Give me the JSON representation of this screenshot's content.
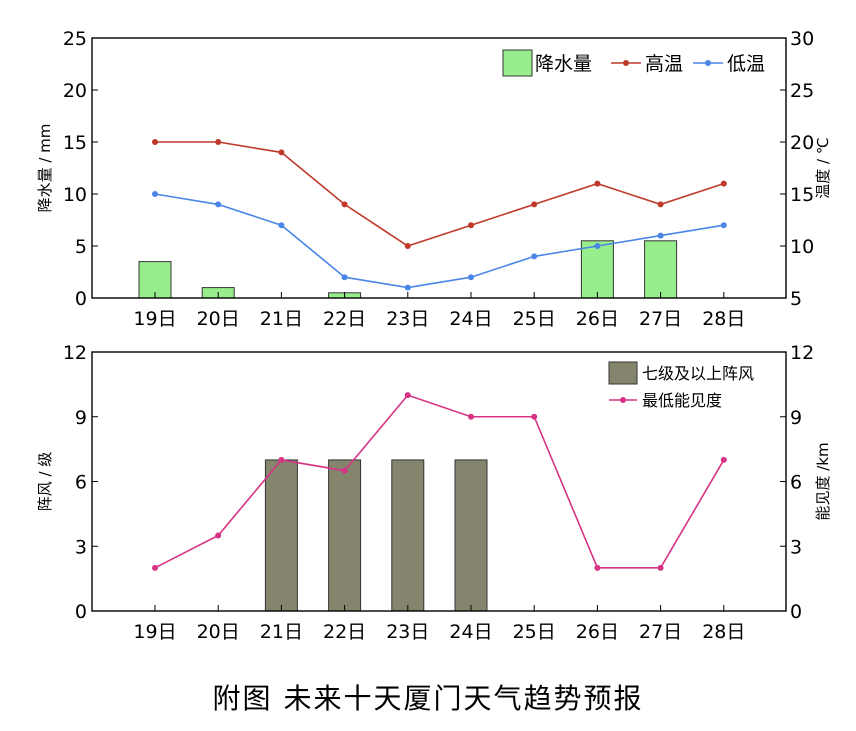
{
  "caption": "附图 未来十天厦门天气趋势预报",
  "chart_data": [
    {
      "type": "bar+line",
      "categories": [
        "19日",
        "20日",
        "21日",
        "22日",
        "23日",
        "24日",
        "25日",
        "26日",
        "27日",
        "28日"
      ],
      "ylabel_left": "降水量 / mm",
      "ylabel_right": "温度 / ℃",
      "ylim_left": [
        0,
        25
      ],
      "yticks_left": [
        0,
        5,
        10,
        15,
        20,
        25
      ],
      "ylim_right": [
        5,
        30
      ],
      "yticks_right": [
        5,
        10,
        15,
        20,
        25,
        30
      ],
      "legend_position": "top-right",
      "bars": {
        "name": "降水量",
        "axis": "left",
        "color": "#98ee8c",
        "values": [
          3.5,
          1,
          0,
          0.5,
          0,
          0,
          0,
          5.5,
          5.5,
          0
        ]
      },
      "lines": [
        {
          "name": "高温",
          "axis": "right",
          "color": "#c0392b",
          "values": [
            20,
            20,
            19,
            14,
            10,
            12,
            14,
            16,
            14,
            16
          ]
        },
        {
          "name": "低温",
          "axis": "right",
          "color": "#4a86e8",
          "values": [
            15,
            14,
            12,
            7,
            6,
            7,
            9,
            10,
            11,
            12
          ]
        }
      ]
    },
    {
      "type": "bar+line",
      "categories": [
        "19日",
        "20日",
        "21日",
        "22日",
        "23日",
        "24日",
        "25日",
        "26日",
        "27日",
        "28日"
      ],
      "ylabel_left": "阵风 / 级",
      "ylabel_right": "能见度 /km",
      "ylim_left": [
        0,
        12
      ],
      "yticks_left": [
        0,
        3,
        6,
        9,
        12
      ],
      "ylim_right": [
        0,
        12
      ],
      "yticks_right": [
        0,
        3,
        6,
        9,
        12
      ],
      "legend_position": "top-right",
      "bars": {
        "name": "七级及以上阵风",
        "axis": "left",
        "color": "#85856e",
        "values": [
          0,
          0,
          7,
          7,
          7,
          7,
          0,
          0,
          0,
          0
        ]
      },
      "lines": [
        {
          "name": "最低能见度",
          "axis": "right",
          "color": "#d63384",
          "values": [
            2,
            3.5,
            7,
            6.5,
            10,
            9,
            9,
            2,
            2,
            7
          ]
        }
      ]
    }
  ]
}
